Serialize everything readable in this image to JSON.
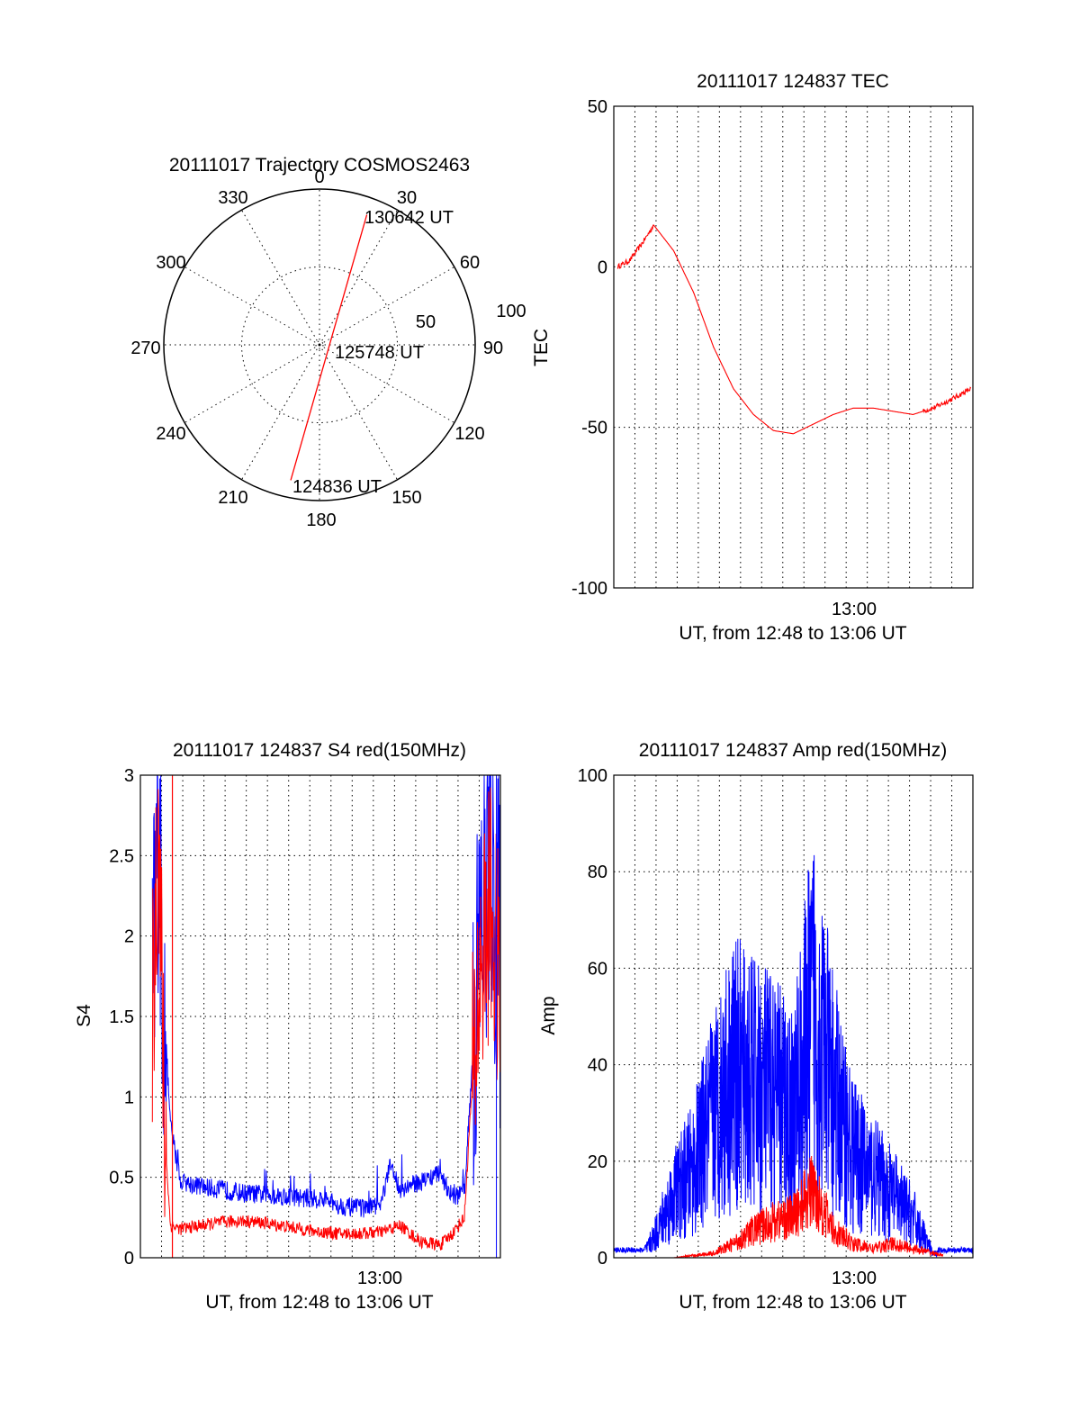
{
  "colors": {
    "red": "#ff0000",
    "blue": "#0000ff",
    "axes": "#000000",
    "background": "#ffffff"
  },
  "chart_data": [
    {
      "type": "polar",
      "title": "20111017 Trajectory COSMOS2463",
      "angle_ticks": [
        "0",
        "30",
        "60",
        "90",
        "120",
        "150",
        "180",
        "210",
        "240",
        "270",
        "300",
        "330"
      ],
      "radial_ticks": [
        "50",
        "100"
      ],
      "grid": true,
      "series": [
        {
          "color": "#ff0000",
          "points": [
            {
              "az": 192,
              "el": 10
            },
            {
              "az": 192,
              "el": 90
            },
            {
              "az": 90,
              "el": 90
            },
            {
              "az": 20,
              "el": 10
            }
          ]
        }
      ],
      "annotations": [
        {
          "text": "130642 UT"
        },
        {
          "text": "125748 UT"
        },
        {
          "text": "124836 UT"
        }
      ]
    },
    {
      "type": "line",
      "title": "20111017 124837 TEC",
      "xlabel": "UT, from 12:48 to 13:06 UT",
      "ylabel": "TEC",
      "x_ticks": [
        "13:00"
      ],
      "y_ticks": [
        "50",
        "0",
        "-50",
        "-100"
      ],
      "ylim": [
        -100,
        50
      ],
      "xlim_min": [
        0,
        18
      ],
      "grid": true,
      "series": [
        {
          "color": "#ff0000",
          "x": [
            0.2,
            0.8,
            1.5,
            2.0,
            3.0,
            4.0,
            5.0,
            6.0,
            7.0,
            8.0,
            9.0,
            10.0,
            11.0,
            12.0,
            13.0,
            14.0,
            15.0,
            16.0,
            16.7,
            17.3,
            17.9
          ],
          "y": [
            0,
            2,
            8,
            13,
            5,
            -8,
            -25,
            -38,
            -46,
            -51,
            -52,
            -49,
            -46,
            -44,
            -44,
            -45,
            -46,
            -44,
            -42,
            -40,
            -38
          ]
        }
      ]
    },
    {
      "type": "line",
      "title": "20111017 124837 S4 red(150MHz)",
      "xlabel": "UT, from 12:48 to 13:06 UT",
      "ylabel": "S4",
      "x_ticks": [
        "13:00"
      ],
      "y_ticks": [
        "3",
        "2.5",
        "2",
        "1.5",
        "1",
        "0.5",
        "0"
      ],
      "ylim": [
        0,
        3
      ],
      "xlim_min": [
        0,
        18
      ],
      "grid": true,
      "series": [
        {
          "color": "#0000ff",
          "x": [
            0.0,
            0.3,
            0.6,
            0.9,
            1.2,
            1.5,
            2.0,
            3.0,
            4.0,
            5.0,
            6.0,
            7.0,
            8.0,
            9.0,
            10.0,
            11.0,
            12.0,
            12.5,
            13.0,
            14.0,
            15.0,
            15.6,
            16.2,
            16.5,
            17.0,
            17.5,
            18.0
          ],
          "y": [
            1.4,
            2.5,
            1.5,
            2.8,
            1.5,
            0.8,
            0.45,
            0.42,
            0.4,
            0.38,
            0.37,
            0.36,
            0.35,
            0.34,
            0.3,
            0.28,
            0.3,
            0.55,
            0.4,
            0.45,
            0.5,
            0.35,
            0.38,
            1.0,
            2.0,
            2.6,
            1.8
          ]
        },
        {
          "color": "#ff0000",
          "x": [
            0.0,
            0.3,
            0.6,
            0.9,
            1.2,
            1.5,
            2.0,
            3.0,
            4.0,
            5.0,
            6.0,
            7.0,
            8.0,
            9.0,
            10.0,
            11.0,
            12.0,
            13.0,
            14.0,
            15.0,
            15.6,
            16.2,
            16.5,
            17.0,
            17.5,
            18.0
          ],
          "y": [
            2.8,
            2.9,
            1.5,
            2.8,
            0.8,
            0.2,
            0.18,
            0.2,
            0.22,
            0.23,
            0.22,
            0.2,
            0.18,
            0.16,
            0.15,
            0.15,
            0.16,
            0.2,
            0.1,
            0.08,
            0.15,
            0.25,
            0.9,
            1.8,
            2.2,
            1.6
          ]
        }
      ]
    },
    {
      "type": "line",
      "title": "20111017 124837 Amp red(150MHz)",
      "xlabel": "UT, from 12:48 to 13:06 UT",
      "ylabel": "Amp",
      "x_ticks": [
        "13:00"
      ],
      "y_ticks": [
        "100",
        "80",
        "60",
        "40",
        "20",
        "0"
      ],
      "ylim": [
        0,
        100
      ],
      "xlim_min": [
        0,
        18
      ],
      "grid": true,
      "series": [
        {
          "color": "#0000ff",
          "x": [
            0.0,
            1.5,
            2.0,
            3.0,
            4.0,
            5.0,
            6.0,
            7.0,
            8.0,
            9.0,
            10.0,
            11.0,
            12.0,
            13.0,
            14.0,
            15.0,
            16.0,
            17.0,
            18.0
          ],
          "y": [
            1,
            1,
            5,
            15,
            22,
            35,
            45,
            42,
            40,
            35,
            60,
            40,
            25,
            20,
            15,
            10,
            1,
            1,
            1
          ]
        },
        {
          "color": "#ff0000",
          "x": [
            0.0,
            3.0,
            4.0,
            5.0,
            6.0,
            7.0,
            8.0,
            9.0,
            10.0,
            11.0,
            12.0,
            13.0,
            14.0,
            15.0,
            16.0,
            17.0,
            18.0
          ],
          "y": [
            0,
            0,
            0.5,
            1,
            3,
            6,
            8,
            9,
            15,
            6,
            3,
            2,
            3,
            2,
            1,
            0,
            0
          ]
        }
      ]
    }
  ]
}
